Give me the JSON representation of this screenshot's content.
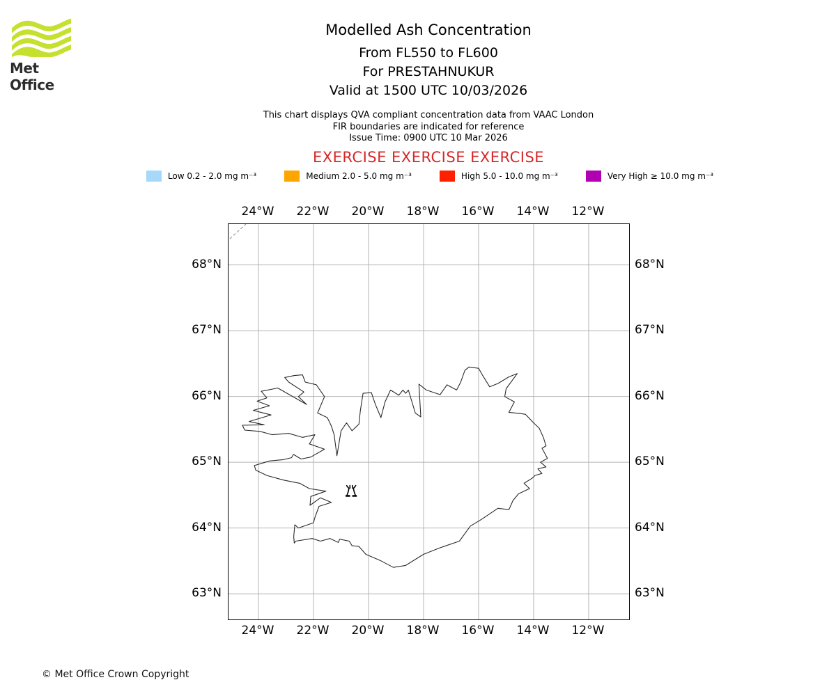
{
  "brand": {
    "logo_text": "Met Office",
    "logo_green": "#C5E02E",
    "logo_text_color": "#2d2d2d"
  },
  "header": {
    "title": "Modelled Ash Concentration",
    "subtitle_lines": [
      "From FL550 to FL600",
      "For PRESTAHNUKUR",
      "Valid at 1500 UTC 10/03/2026"
    ]
  },
  "info": {
    "lines": [
      "This chart displays QVA compliant concentration data from VAAC London",
      "FIR boundaries are indicated for reference",
      "Issue Time: 0900 UTC 10 Mar 2026"
    ],
    "exercise_text": "EXERCISE EXERCISE EXERCISE",
    "exercise_color": "#d62728"
  },
  "legend": {
    "items": [
      {
        "label": "Low 0.2 - 2.0 mg m⁻³",
        "color": "#A6D8FA"
      },
      {
        "label": "Medium 2.0 - 5.0 mg m⁻³",
        "color": "#FFA500"
      },
      {
        "label": "High 5.0 - 10.0 mg m⁻³",
        "color": "#FF2000"
      },
      {
        "label": "Very High ≥ 10.0 mg m⁻³",
        "color": "#B000B2"
      }
    ]
  },
  "map": {
    "projection_extent": {
      "lon_min": -25.09,
      "lon_max": -10.53,
      "lat_min": 62.61,
      "lat_max": 68.62
    },
    "lon_ticks": [
      {
        "deg": -24,
        "label": "24°W"
      },
      {
        "deg": -22,
        "label": "22°W"
      },
      {
        "deg": -20,
        "label": "20°W"
      },
      {
        "deg": -18,
        "label": "18°W"
      },
      {
        "deg": -16,
        "label": "16°W"
      },
      {
        "deg": -14,
        "label": "14°W"
      },
      {
        "deg": -12,
        "label": "12°W"
      }
    ],
    "lat_ticks": [
      {
        "deg": 68,
        "label": "68°N"
      },
      {
        "deg": 67,
        "label": "67°N"
      },
      {
        "deg": 66,
        "label": "66°N"
      },
      {
        "deg": 65,
        "label": "65°N"
      },
      {
        "deg": 64,
        "label": "64°N"
      },
      {
        "deg": 63,
        "label": "63°N"
      }
    ],
    "volcano": {
      "name": "PRESTAHNUKUR",
      "lon": -20.63,
      "lat": 64.56
    },
    "grid_color": "#b4b4b4",
    "coast_color": "#2a2a2a",
    "fir_line_color": "#8a8a8a"
  },
  "footer": {
    "copyright": "© Met Office Crown Copyright"
  }
}
